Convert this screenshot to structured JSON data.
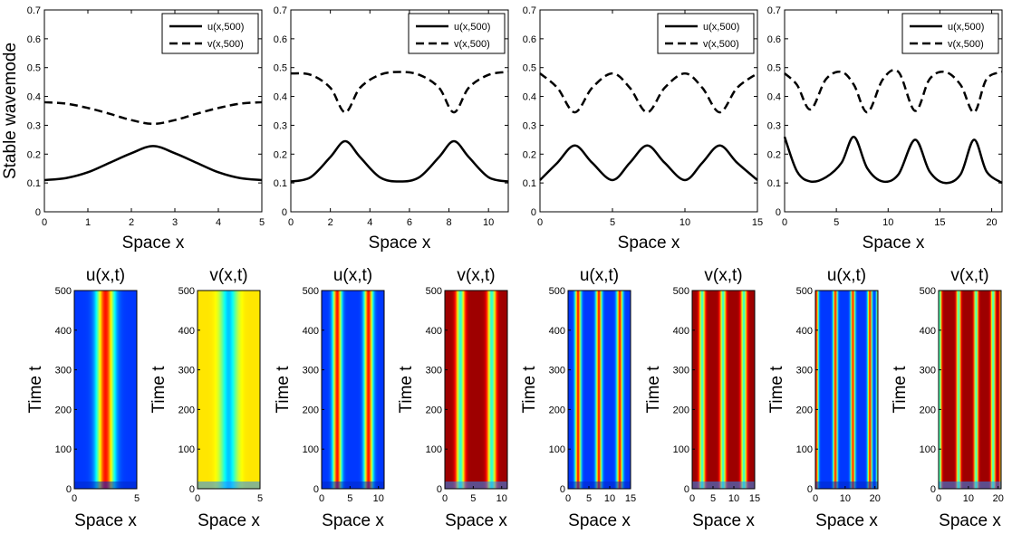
{
  "figure": {
    "top_row_ylabel": "Stable wavemode",
    "top_row_xlabel": "Space x",
    "bottom_row_xlabel": "Space x",
    "bottom_row_ylabel": "Time t"
  },
  "chart_data": [
    {
      "type": "line",
      "panel": "top-1",
      "domain_length": 5,
      "xlim": [
        0,
        5
      ],
      "ylim": [
        0,
        0.7
      ],
      "xticks": [
        0,
        1,
        2,
        3,
        4,
        5
      ],
      "yticks": [
        0,
        0.1,
        0.2,
        0.3,
        0.4,
        0.5,
        0.6,
        0.7
      ],
      "xlabel": "Space x",
      "ylabel": "Stable wavemode",
      "legend": [
        "u(x,500)",
        "v(x,500)"
      ],
      "legend_position": "top-right",
      "series": [
        {
          "name": "u(x,500)",
          "style": "solid",
          "x": [
            0,
            0.5,
            1,
            1.5,
            2,
            2.5,
            3,
            3.5,
            4,
            4.5,
            5
          ],
          "values": [
            0.11,
            0.117,
            0.137,
            0.17,
            0.203,
            0.228,
            0.203,
            0.17,
            0.137,
            0.117,
            0.11
          ]
        },
        {
          "name": "v(x,500)",
          "style": "dashed",
          "x": [
            0,
            0.5,
            1,
            1.5,
            2,
            2.5,
            3,
            3.5,
            4,
            4.5,
            5
          ],
          "values": [
            0.38,
            0.375,
            0.36,
            0.34,
            0.318,
            0.305,
            0.318,
            0.34,
            0.36,
            0.375,
            0.38
          ]
        }
      ]
    },
    {
      "type": "line",
      "panel": "top-2",
      "domain_length": 11,
      "xlim": [
        0,
        11
      ],
      "ylim": [
        0,
        0.7
      ],
      "xticks": [
        0,
        2,
        4,
        6,
        8,
        10
      ],
      "yticks": [
        0,
        0.1,
        0.2,
        0.3,
        0.4,
        0.5,
        0.6,
        0.7
      ],
      "xlabel": "Space x",
      "legend": [
        "u(x,500)",
        "v(x,500)"
      ],
      "legend_position": "top-right",
      "series": [
        {
          "name": "u(x,500)",
          "style": "solid",
          "x": [
            0,
            1,
            2,
            2.75,
            3.5,
            4.5,
            5.5,
            6.5,
            7.5,
            8.25,
            9,
            10,
            11
          ],
          "values": [
            0.105,
            0.12,
            0.19,
            0.245,
            0.19,
            0.12,
            0.105,
            0.12,
            0.19,
            0.245,
            0.19,
            0.12,
            0.105
          ]
        },
        {
          "name": "v(x,500)",
          "style": "dashed",
          "x": [
            0,
            1,
            2,
            2.75,
            3.5,
            4.5,
            5.5,
            6.5,
            7.5,
            8.25,
            9,
            10,
            11
          ],
          "values": [
            0.48,
            0.475,
            0.43,
            0.345,
            0.43,
            0.475,
            0.485,
            0.475,
            0.43,
            0.345,
            0.43,
            0.475,
            0.485
          ]
        }
      ]
    },
    {
      "type": "line",
      "panel": "top-3",
      "domain_length": 15,
      "xlim": [
        0,
        15
      ],
      "ylim": [
        0,
        0.7
      ],
      "xticks": [
        0,
        5,
        10,
        15
      ],
      "yticks": [
        0,
        0.1,
        0.2,
        0.3,
        0.4,
        0.5,
        0.6,
        0.7
      ],
      "xlabel": "Space x",
      "legend": [
        "u(x,500)",
        "v(x,500)"
      ],
      "legend_position": "top-right",
      "series": [
        {
          "name": "u(x,500)",
          "style": "solid",
          "x": [
            0,
            1.2,
            2.4,
            3.6,
            5,
            6.2,
            7.4,
            8.6,
            10,
            11.2,
            12.4,
            13.6,
            15
          ],
          "values": [
            0.11,
            0.17,
            0.23,
            0.17,
            0.11,
            0.17,
            0.23,
            0.17,
            0.11,
            0.17,
            0.23,
            0.17,
            0.11
          ]
        },
        {
          "name": "v(x,500)",
          "style": "dashed",
          "x": [
            0,
            1.2,
            2.4,
            3.6,
            5,
            6.2,
            7.4,
            8.6,
            10,
            11.2,
            12.4,
            13.6,
            15
          ],
          "values": [
            0.48,
            0.43,
            0.345,
            0.43,
            0.48,
            0.43,
            0.345,
            0.43,
            0.48,
            0.43,
            0.345,
            0.43,
            0.48
          ]
        }
      ]
    },
    {
      "type": "line",
      "panel": "top-4",
      "domain_length": 21,
      "xlim": [
        0,
        21
      ],
      "ylim": [
        0,
        0.7
      ],
      "xticks": [
        0,
        5,
        10,
        15,
        20
      ],
      "yticks": [
        0,
        0.1,
        0.2,
        0.3,
        0.4,
        0.5,
        0.6,
        0.7
      ],
      "xlabel": "Space x",
      "legend": [
        "u(x,500)",
        "v(x,500)"
      ],
      "legend_position": "top-right",
      "series": [
        {
          "name": "u(x,500)",
          "style": "solid",
          "x": [
            0,
            1.2,
            2.5,
            4,
            5.5,
            6.7,
            8,
            9.5,
            11,
            12.6,
            14,
            15.5,
            17,
            18.3,
            19.5,
            21
          ],
          "values": [
            0.26,
            0.14,
            0.105,
            0.12,
            0.17,
            0.26,
            0.15,
            0.105,
            0.13,
            0.25,
            0.14,
            0.1,
            0.13,
            0.25,
            0.14,
            0.1
          ]
        },
        {
          "name": "v(x,500)",
          "style": "dashed",
          "x": [
            0,
            1.2,
            2.5,
            4,
            5.5,
            6.7,
            8,
            9.5,
            11,
            12.6,
            14,
            15.5,
            17,
            18.3,
            19.5,
            21
          ],
          "values": [
            0.48,
            0.44,
            0.355,
            0.46,
            0.485,
            0.44,
            0.345,
            0.46,
            0.485,
            0.35,
            0.46,
            0.485,
            0.44,
            0.345,
            0.46,
            0.485
          ]
        }
      ]
    },
    {
      "type": "heatmap",
      "panel": "bottom-1",
      "title": "u(x,t)",
      "var": "u",
      "domain_length": 5,
      "xlim": [
        0,
        5
      ],
      "ylim": [
        0,
        500
      ],
      "xticks": [
        0,
        5
      ],
      "yticks": [
        0,
        100,
        200,
        300,
        400,
        500
      ],
      "xlabel": "Space x",
      "ylabel": "Time t",
      "peaks": [
        2.5
      ]
    },
    {
      "type": "heatmap",
      "panel": "bottom-2",
      "title": "v(x,t)",
      "var": "v",
      "domain_length": 5,
      "xlim": [
        0,
        5
      ],
      "ylim": [
        0,
        500
      ],
      "xticks": [
        0,
        5
      ],
      "yticks": [
        0,
        100,
        200,
        300,
        400,
        500
      ],
      "xlabel": "Space x",
      "ylabel": "Time t",
      "peaks": [
        2.5
      ]
    },
    {
      "type": "heatmap",
      "panel": "bottom-3",
      "title": "u(x,t)",
      "var": "u",
      "domain_length": 11,
      "xlim": [
        0,
        11
      ],
      "ylim": [
        0,
        500
      ],
      "xticks": [
        0,
        5,
        10
      ],
      "yticks": [
        0,
        100,
        200,
        300,
        400,
        500
      ],
      "xlabel": "Space x",
      "ylabel": "Time t",
      "peaks": [
        2.75,
        8.25
      ]
    },
    {
      "type": "heatmap",
      "panel": "bottom-4",
      "title": "v(x,t)",
      "var": "v",
      "domain_length": 11,
      "xlim": [
        0,
        11
      ],
      "ylim": [
        0,
        500
      ],
      "xticks": [
        0,
        5,
        10
      ],
      "yticks": [
        0,
        100,
        200,
        300,
        400,
        500
      ],
      "xlabel": "Space x",
      "ylabel": "Time t",
      "peaks": [
        2.75,
        8.25
      ]
    },
    {
      "type": "heatmap",
      "panel": "bottom-5",
      "title": "u(x,t)",
      "var": "u",
      "domain_length": 15,
      "xlim": [
        0,
        15
      ],
      "ylim": [
        0,
        500
      ],
      "xticks": [
        0,
        5,
        10,
        15
      ],
      "yticks": [
        0,
        100,
        200,
        300,
        400,
        500
      ],
      "xlabel": "Space x",
      "ylabel": "Time t",
      "peaks": [
        2.4,
        7.4,
        12.4
      ]
    },
    {
      "type": "heatmap",
      "panel": "bottom-6",
      "title": "v(x,t)",
      "var": "v",
      "domain_length": 15,
      "xlim": [
        0,
        15
      ],
      "ylim": [
        0,
        500
      ],
      "xticks": [
        0,
        5,
        10,
        15
      ],
      "yticks": [
        0,
        100,
        200,
        300,
        400,
        500
      ],
      "xlabel": "Space x",
      "ylabel": "Time t",
      "peaks": [
        2.4,
        7.4,
        12.4
      ]
    },
    {
      "type": "heatmap",
      "panel": "bottom-7",
      "title": "u(x,t)",
      "var": "u",
      "domain_length": 21,
      "xlim": [
        0,
        21
      ],
      "ylim": [
        0,
        500
      ],
      "xticks": [
        0,
        10,
        20
      ],
      "yticks": [
        0,
        100,
        200,
        300,
        400,
        500
      ],
      "xlabel": "Space x",
      "ylabel": "Time t",
      "peaks": [
        0.3,
        6.7,
        12.6,
        18.3
      ]
    },
    {
      "type": "heatmap",
      "panel": "bottom-8",
      "title": "v(x,t)",
      "var": "v",
      "domain_length": 21,
      "xlim": [
        0,
        21
      ],
      "ylim": [
        0,
        500
      ],
      "xticks": [
        0,
        10,
        20
      ],
      "yticks": [
        0,
        100,
        200,
        300,
        400,
        500
      ],
      "xlabel": "Space x",
      "ylabel": "Time t",
      "peaks": [
        0.3,
        6.7,
        12.6,
        18.3
      ]
    }
  ]
}
